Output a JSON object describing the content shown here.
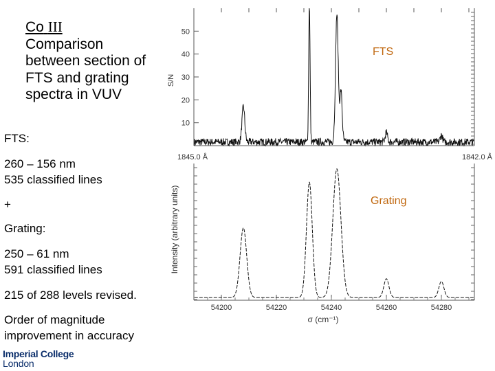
{
  "title": {
    "element": "Co",
    "ion": "III",
    "lines": [
      "Comparison",
      "between section of",
      "FTS and grating",
      "spectra in VUV"
    ]
  },
  "info": {
    "fts_heading": "FTS:",
    "fts_range": "260  – 156 nm",
    "fts_lines": "535 classified lines",
    "plus": "+",
    "grating_heading": "Grating:",
    "grating_range": "250 – 61 nm",
    "grating_lines": "591 classified lines",
    "revised": "215 of 288 levels revised.",
    "order_1": "Order of magnitude",
    "order_2": "improvement in accuracy"
  },
  "logo": {
    "line1": "Imperial College",
    "line2": "London"
  },
  "colors": {
    "label": "#c0670e",
    "logo": "#0b2e6b"
  },
  "chart_data": [
    {
      "type": "line",
      "panel_label": "FTS",
      "ylabel": "S/N",
      "yticks": [
        10,
        20,
        30,
        40,
        50
      ],
      "ylim": [
        0,
        60
      ],
      "xlim": [
        54190,
        54292
      ],
      "wavelength_left": "1845.0 Å",
      "wavelength_right": "1842.0 Å",
      "noise_level": 2,
      "peaks": [
        {
          "x": 54208,
          "y": 15.5,
          "width": 0.7
        },
        {
          "x": 54232,
          "y": 61,
          "width": 0.35
        },
        {
          "x": 54242,
          "y": 56,
          "width": 0.7
        },
        {
          "x": 54243.5,
          "y": 22,
          "width": 0.6
        },
        {
          "x": 54260,
          "y": 4,
          "width": 0.6
        },
        {
          "x": 54280,
          "y": 3,
          "width": 0.6
        }
      ]
    },
    {
      "type": "line",
      "panel_label": "Grating",
      "xlabel": "σ (cm⁻¹)",
      "ylabel": "Intensity (arbitrary units)",
      "xticks": [
        54200,
        54220,
        54240,
        54260,
        54280
      ],
      "xlim": [
        54190,
        54292
      ],
      "ylim": [
        0,
        1
      ],
      "peaks": [
        {
          "x": 54208,
          "y": 0.52,
          "width": 1.7
        },
        {
          "x": 54232,
          "y": 0.86,
          "width": 1.5
        },
        {
          "x": 54242,
          "y": 0.96,
          "width": 2.1
        },
        {
          "x": 54260,
          "y": 0.14,
          "width": 1.3
        },
        {
          "x": 54280,
          "y": 0.12,
          "width": 1.3
        }
      ]
    }
  ]
}
